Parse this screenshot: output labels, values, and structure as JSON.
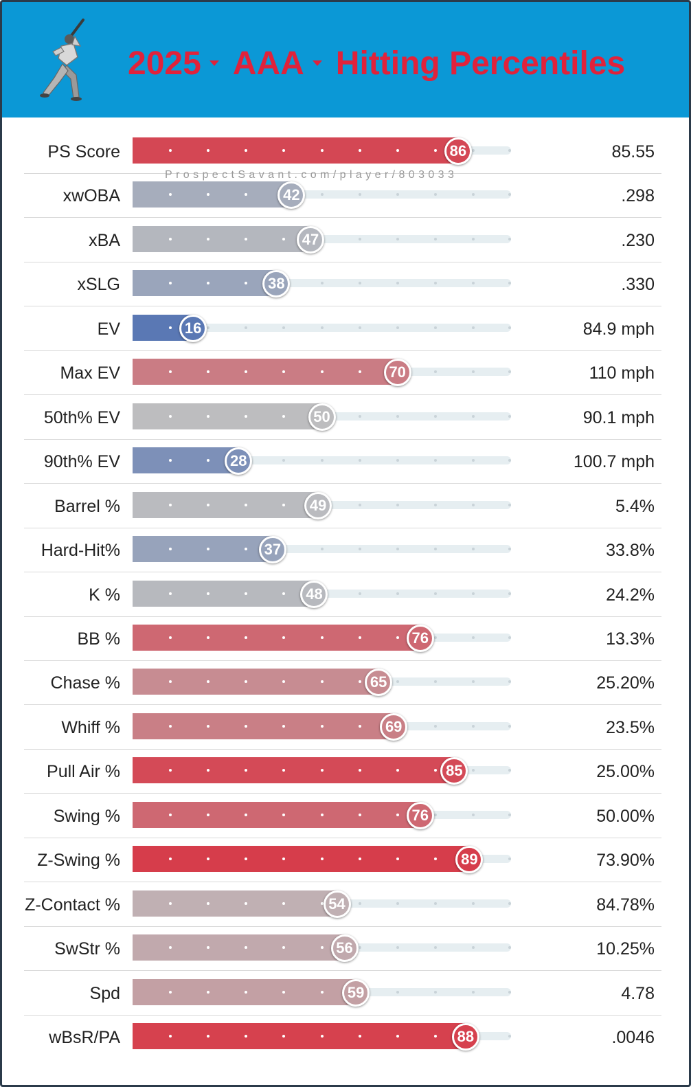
{
  "header": {
    "year": "2025",
    "level": "AAA",
    "title": "Hitting Percentiles"
  },
  "watermark": "ProspectSavant.com/player/803033",
  "colors": {
    "header_bg": "#0b98d6",
    "title": "#e0223b",
    "high": "#d73a48",
    "mid": "#bdbdbf",
    "low": "#5a78b4"
  },
  "chart_data": {
    "type": "bar",
    "orientation": "horizontal",
    "xlim": [
      0,
      100
    ],
    "categories": [
      "PS Score",
      "xwOBA",
      "xBA",
      "xSLG",
      "EV",
      "Max EV",
      "50th% EV",
      "90th% EV",
      "Barrel %",
      "Hard-Hit%",
      "K %",
      "BB %",
      "Chase %",
      "Whiff %",
      "Pull Air %",
      "Swing %",
      "Z-Swing %",
      "Z-Contact %",
      "SwStr %",
      "Spd",
      "wBsR/PA"
    ],
    "percentiles": [
      86,
      42,
      47,
      38,
      16,
      70,
      50,
      28,
      49,
      37,
      48,
      76,
      65,
      69,
      85,
      76,
      89,
      54,
      56,
      59,
      88
    ],
    "stat_values": [
      "85.55",
      ".298",
      ".230",
      ".330",
      "84.9 mph",
      "110 mph",
      "90.1 mph",
      "100.7 mph",
      "5.4%",
      "33.8%",
      "24.2%",
      "13.3%",
      "25.20%",
      "23.5%",
      "25.00%",
      "50.00%",
      "73.90%",
      "84.78%",
      "10.25%",
      "4.78",
      ".0046"
    ]
  }
}
